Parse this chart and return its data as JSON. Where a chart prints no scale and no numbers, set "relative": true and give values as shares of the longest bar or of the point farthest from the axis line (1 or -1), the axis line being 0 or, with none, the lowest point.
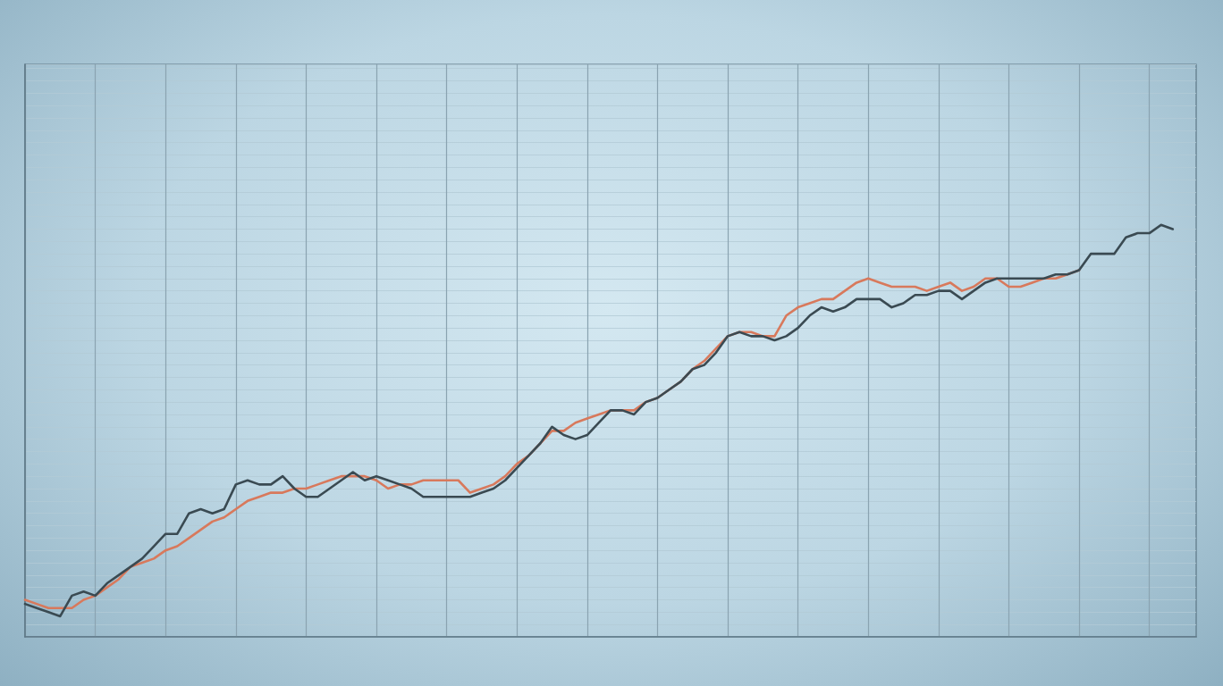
{
  "chart_data": {
    "type": "line",
    "relative": true,
    "grid": true,
    "marker": "none",
    "line_style": "solid",
    "categories": [
      null,
      null,
      null,
      null,
      null,
      null,
      null,
      null,
      null,
      null,
      null,
      null,
      null,
      null,
      null,
      null,
      null,
      null,
      null,
      null,
      null,
      null,
      null,
      null,
      null,
      null,
      null,
      null,
      null,
      null,
      null,
      null,
      null,
      null,
      null,
      null,
      null,
      null,
      null,
      null,
      null,
      null,
      null,
      null,
      null,
      null,
      null,
      null,
      null,
      null,
      null,
      null,
      null,
      null,
      null,
      null,
      null,
      null,
      null,
      null,
      null,
      null,
      null,
      null,
      null,
      null,
      null,
      null,
      null,
      null,
      null,
      null,
      null,
      null,
      null,
      null,
      null,
      null,
      null,
      null,
      null,
      null,
      null,
      null,
      null,
      null,
      null,
      null,
      null,
      null,
      null,
      null,
      null,
      null,
      null,
      null,
      null,
      null,
      null,
      null,
      null
    ],
    "series": [
      {
        "color": "#d8795c",
        "values": [
          0.09,
          0.08,
          0.07,
          0.07,
          0.07,
          0.09,
          0.1,
          0.12,
          0.14,
          0.17,
          0.18,
          0.19,
          0.21,
          0.22,
          0.24,
          0.26,
          0.28,
          0.29,
          0.31,
          0.33,
          0.34,
          0.35,
          0.35,
          0.36,
          0.36,
          0.37,
          0.38,
          0.39,
          0.39,
          0.39,
          0.38,
          0.36,
          0.37,
          0.37,
          0.38,
          0.38,
          0.38,
          0.38,
          0.35,
          0.36,
          0.37,
          0.39,
          0.42,
          0.44,
          0.47,
          0.5,
          0.5,
          0.52,
          0.53,
          0.54,
          0.55,
          0.55,
          0.55,
          0.57,
          0.58,
          0.6,
          0.62,
          0.65,
          0.67,
          0.7,
          0.73,
          0.74,
          0.74,
          0.73,
          0.73,
          0.78,
          0.8,
          0.81,
          0.82,
          0.82,
          0.84,
          0.86,
          0.87,
          0.86,
          0.85,
          0.85,
          0.85,
          0.84,
          0.85,
          0.86,
          0.84,
          0.85,
          0.87,
          0.87,
          0.85,
          0.85,
          0.86,
          0.87,
          0.87,
          0.88,
          0.89,
          null,
          null,
          null,
          null,
          null,
          null,
          null,
          null,
          null,
          null
        ]
      },
      {
        "color": "#3a4a52",
        "values": [
          0.08,
          0.07,
          0.06,
          0.05,
          0.1,
          0.11,
          0.1,
          0.13,
          0.15,
          0.17,
          0.19,
          0.22,
          0.25,
          0.25,
          0.3,
          0.31,
          0.3,
          0.31,
          0.37,
          0.38,
          0.37,
          0.37,
          0.39,
          0.36,
          0.34,
          0.34,
          0.36,
          0.38,
          0.4,
          0.38,
          0.39,
          0.38,
          0.37,
          0.36,
          0.34,
          0.34,
          0.34,
          0.34,
          0.34,
          0.35,
          0.36,
          0.38,
          0.41,
          0.44,
          0.47,
          0.51,
          0.49,
          0.48,
          0.49,
          0.52,
          0.55,
          0.55,
          0.54,
          0.57,
          0.58,
          0.6,
          0.62,
          0.65,
          0.66,
          0.69,
          0.73,
          0.74,
          0.73,
          0.73,
          0.72,
          0.73,
          0.75,
          0.78,
          0.8,
          0.79,
          0.8,
          0.82,
          0.82,
          0.82,
          0.8,
          0.81,
          0.83,
          0.83,
          0.84,
          0.84,
          0.82,
          0.84,
          0.86,
          0.87,
          0.87,
          0.87,
          0.87,
          0.87,
          0.88,
          0.88,
          0.89,
          0.93,
          0.93,
          0.93,
          0.97,
          0.98,
          0.98,
          1,
          0.99,
          null,
          null
        ]
      }
    ]
  }
}
